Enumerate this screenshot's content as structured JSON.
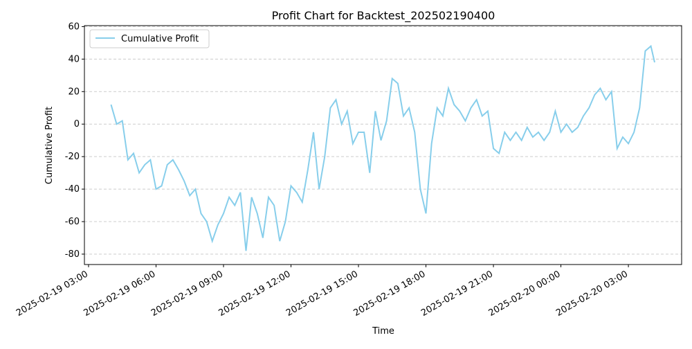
{
  "chart_data": {
    "type": "line",
    "title": "Profit Chart for Backtest_202502190400",
    "xlabel": "Time",
    "ylabel": "Cumulative Profit",
    "x": [
      "2025-02-19 04:00",
      "2025-02-19 04:15",
      "2025-02-19 04:30",
      "2025-02-19 04:45",
      "2025-02-19 05:00",
      "2025-02-19 05:15",
      "2025-02-19 05:30",
      "2025-02-19 05:45",
      "2025-02-19 06:00",
      "2025-02-19 06:15",
      "2025-02-19 06:30",
      "2025-02-19 06:45",
      "2025-02-19 07:00",
      "2025-02-19 07:15",
      "2025-02-19 07:30",
      "2025-02-19 07:45",
      "2025-02-19 08:00",
      "2025-02-19 08:15",
      "2025-02-19 08:30",
      "2025-02-19 08:45",
      "2025-02-19 09:00",
      "2025-02-19 09:15",
      "2025-02-19 09:30",
      "2025-02-19 09:45",
      "2025-02-19 10:00",
      "2025-02-19 10:15",
      "2025-02-19 10:30",
      "2025-02-19 10:45",
      "2025-02-19 11:00",
      "2025-02-19 11:15",
      "2025-02-19 11:30",
      "2025-02-19 11:45",
      "2025-02-19 12:00",
      "2025-02-19 12:15",
      "2025-02-19 12:30",
      "2025-02-19 12:45",
      "2025-02-19 13:00",
      "2025-02-19 13:15",
      "2025-02-19 13:30",
      "2025-02-19 13:45",
      "2025-02-19 14:00",
      "2025-02-19 14:15",
      "2025-02-19 14:30",
      "2025-02-19 14:45",
      "2025-02-19 15:00",
      "2025-02-19 15:15",
      "2025-02-19 15:30",
      "2025-02-19 15:45",
      "2025-02-19 16:00",
      "2025-02-19 16:15",
      "2025-02-19 16:30",
      "2025-02-19 16:45",
      "2025-02-19 17:00",
      "2025-02-19 17:15",
      "2025-02-19 17:30",
      "2025-02-19 17:45",
      "2025-02-19 18:00",
      "2025-02-19 18:15",
      "2025-02-19 18:30",
      "2025-02-19 18:45",
      "2025-02-19 19:00",
      "2025-02-19 19:15",
      "2025-02-19 19:30",
      "2025-02-19 19:45",
      "2025-02-19 20:00",
      "2025-02-19 20:15",
      "2025-02-19 20:30",
      "2025-02-19 20:45",
      "2025-02-19 21:00",
      "2025-02-19 21:15",
      "2025-02-19 21:30",
      "2025-02-19 21:45",
      "2025-02-19 22:00",
      "2025-02-19 22:15",
      "2025-02-19 22:30",
      "2025-02-19 22:45",
      "2025-02-19 23:00",
      "2025-02-19 23:15",
      "2025-02-19 23:30",
      "2025-02-19 23:45",
      "2025-02-20 00:00",
      "2025-02-20 00:15",
      "2025-02-20 00:30",
      "2025-02-20 00:45",
      "2025-02-20 01:00",
      "2025-02-20 01:15",
      "2025-02-20 01:30",
      "2025-02-20 01:45",
      "2025-02-20 02:00",
      "2025-02-20 02:15",
      "2025-02-20 02:30",
      "2025-02-20 02:45",
      "2025-02-20 03:00",
      "2025-02-20 03:15",
      "2025-02-20 03:30",
      "2025-02-20 03:45",
      "2025-02-20 04:00",
      "2025-02-20 04:10"
    ],
    "series": [
      {
        "name": "Cumulative Profit",
        "color": "#87ceeb",
        "values": [
          12,
          0,
          2,
          -22,
          -18,
          -30,
          -25,
          -22,
          -40,
          -38,
          -25,
          -22,
          -28,
          -35,
          -44,
          -40,
          -55,
          -60,
          -72,
          -62,
          -55,
          -45,
          -50,
          -42,
          -78,
          -45,
          -55,
          -70,
          -45,
          -50,
          -72,
          -60,
          -38,
          -42,
          -48,
          -28,
          -5,
          -40,
          -20,
          10,
          15,
          0,
          8,
          -12,
          -5,
          -5,
          -30,
          8,
          -10,
          2,
          28,
          25,
          5,
          10,
          -5,
          -40,
          -55,
          -12,
          10,
          5,
          22,
          12,
          8,
          2,
          10,
          15,
          5,
          8,
          -15,
          -18,
          -5,
          -10,
          -5,
          -10,
          -2,
          -8,
          -5,
          -10,
          -5,
          8,
          -5,
          0,
          -5,
          -2,
          5,
          10,
          18,
          22,
          15,
          20,
          -15,
          -8,
          -12,
          -5,
          10,
          45,
          48,
          38
        ]
      }
    ],
    "xlim": [
      "2025-02-19 02:49",
      "2025-02-20 05:22"
    ],
    "xticks": [
      "2025-02-19 03:00",
      "2025-02-19 06:00",
      "2025-02-19 09:00",
      "2025-02-19 12:00",
      "2025-02-19 15:00",
      "2025-02-19 18:00",
      "2025-02-19 21:00",
      "2025-02-20 00:00",
      "2025-02-20 03:00"
    ],
    "ylim": [
      -86.4,
      60.6
    ],
    "yticks": [
      -80,
      -60,
      -40,
      -20,
      0,
      20,
      40,
      60
    ],
    "grid": true,
    "legend": "upper left"
  }
}
